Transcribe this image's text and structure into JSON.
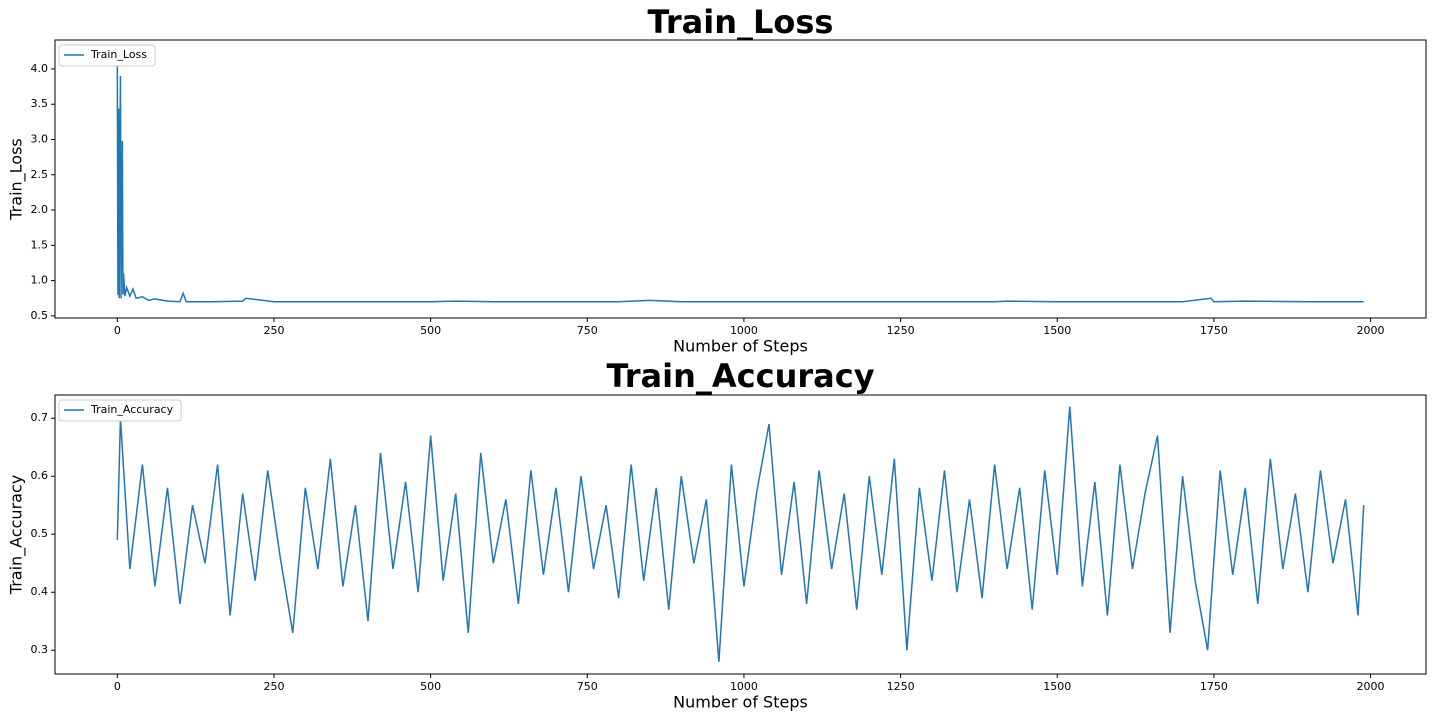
{
  "chart_data": [
    {
      "type": "line",
      "title": "Train_Loss",
      "xlabel": "Number of Steps",
      "ylabel": "Train_Loss",
      "legend": "upper left",
      "x": [
        0,
        1,
        2,
        3,
        4,
        5,
        6,
        8,
        9,
        10,
        12,
        15,
        20,
        25,
        30,
        40,
        50,
        60,
        80,
        100,
        105,
        110,
        150,
        200,
        205,
        250,
        300,
        400,
        500,
        540,
        600,
        700,
        800,
        850,
        900,
        1000,
        1100,
        1200,
        1300,
        1400,
        1420,
        1500,
        1600,
        1700,
        1745,
        1750,
        1800,
        1900,
        1989
      ],
      "series": [
        {
          "name": "Train_Loss",
          "color": "#1f77b4",
          "values": [
            4.08,
            0.8,
            3.44,
            0.75,
            2.62,
            3.9,
            0.75,
            2.98,
            0.8,
            1.1,
            0.78,
            0.9,
            0.78,
            0.88,
            0.75,
            0.77,
            0.72,
            0.74,
            0.71,
            0.7,
            0.82,
            0.7,
            0.7,
            0.71,
            0.75,
            0.7,
            0.7,
            0.7,
            0.7,
            0.71,
            0.7,
            0.7,
            0.7,
            0.72,
            0.7,
            0.7,
            0.7,
            0.7,
            0.7,
            0.7,
            0.71,
            0.7,
            0.7,
            0.7,
            0.75,
            0.7,
            0.71,
            0.7,
            0.7
          ]
        }
      ],
      "xlim": [
        -99.45,
        2088.45
      ],
      "ylim": [
        0.47,
        4.41
      ],
      "xticks": [
        0,
        250,
        500,
        750,
        1000,
        1250,
        1500,
        1750,
        2000
      ],
      "yticks": [
        0.5,
        {
          "value": 1,
          "label": "1.0"
        },
        1.5,
        {
          "value": 2,
          "label": "2.0"
        },
        2.5,
        {
          "value": 3,
          "label": "3.0"
        },
        3.5,
        {
          "value": 4,
          "label": "4.0"
        }
      ]
    },
    {
      "type": "line",
      "title": "Train_Accuracy",
      "xlabel": "Number of Steps",
      "ylabel": "Train_Accuracy",
      "legend": "upper left",
      "x": [
        0,
        5,
        20,
        40,
        60,
        80,
        100,
        120,
        140,
        160,
        180,
        200,
        220,
        240,
        260,
        280,
        300,
        320,
        340,
        360,
        380,
        400,
        420,
        440,
        460,
        480,
        500,
        520,
        540,
        560,
        580,
        600,
        620,
        640,
        660,
        680,
        700,
        720,
        740,
        760,
        780,
        800,
        820,
        840,
        860,
        880,
        900,
        920,
        940,
        960,
        980,
        1000,
        1020,
        1040,
        1060,
        1080,
        1100,
        1120,
        1140,
        1160,
        1180,
        1200,
        1220,
        1240,
        1260,
        1280,
        1300,
        1320,
        1340,
        1360,
        1380,
        1400,
        1420,
        1440,
        1460,
        1480,
        1500,
        1520,
        1540,
        1560,
        1580,
        1600,
        1620,
        1640,
        1660,
        1680,
        1700,
        1720,
        1740,
        1760,
        1780,
        1800,
        1820,
        1840,
        1860,
        1880,
        1900,
        1920,
        1940,
        1960,
        1980,
        1989
      ],
      "series": [
        {
          "name": "Train_Accuracy",
          "color": "#1f77b4",
          "values": [
            0.49,
            0.7,
            0.44,
            0.62,
            0.41,
            0.58,
            0.38,
            0.55,
            0.45,
            0.62,
            0.36,
            0.57,
            0.42,
            0.61,
            0.46,
            0.33,
            0.58,
            0.44,
            0.63,
            0.41,
            0.55,
            0.35,
            0.64,
            0.44,
            0.59,
            0.4,
            0.67,
            0.42,
            0.57,
            0.33,
            0.64,
            0.45,
            0.56,
            0.38,
            0.61,
            0.43,
            0.58,
            0.4,
            0.6,
            0.44,
            0.55,
            0.39,
            0.62,
            0.42,
            0.58,
            0.37,
            0.6,
            0.45,
            0.56,
            0.28,
            0.62,
            0.41,
            0.57,
            0.69,
            0.43,
            0.59,
            0.38,
            0.61,
            0.44,
            0.57,
            0.37,
            0.6,
            0.43,
            0.63,
            0.3,
            0.58,
            0.42,
            0.61,
            0.4,
            0.56,
            0.39,
            0.62,
            0.44,
            0.58,
            0.37,
            0.61,
            0.43,
            0.72,
            0.41,
            0.59,
            0.36,
            0.62,
            0.44,
            0.57,
            0.67,
            0.33,
            0.6,
            0.42,
            0.3,
            0.61,
            0.43,
            0.58,
            0.38,
            0.63,
            0.44,
            0.57,
            0.4,
            0.61,
            0.45,
            0.56,
            0.36,
            0.55
          ]
        }
      ],
      "xlim": [
        -99.45,
        2088.45
      ],
      "ylim": [
        0.259,
        0.74
      ],
      "xticks": [
        0,
        250,
        500,
        750,
        1000,
        1250,
        1500,
        1750,
        2000
      ],
      "yticks": [
        0.3,
        0.4,
        0.5,
        0.6,
        0.7
      ]
    }
  ]
}
